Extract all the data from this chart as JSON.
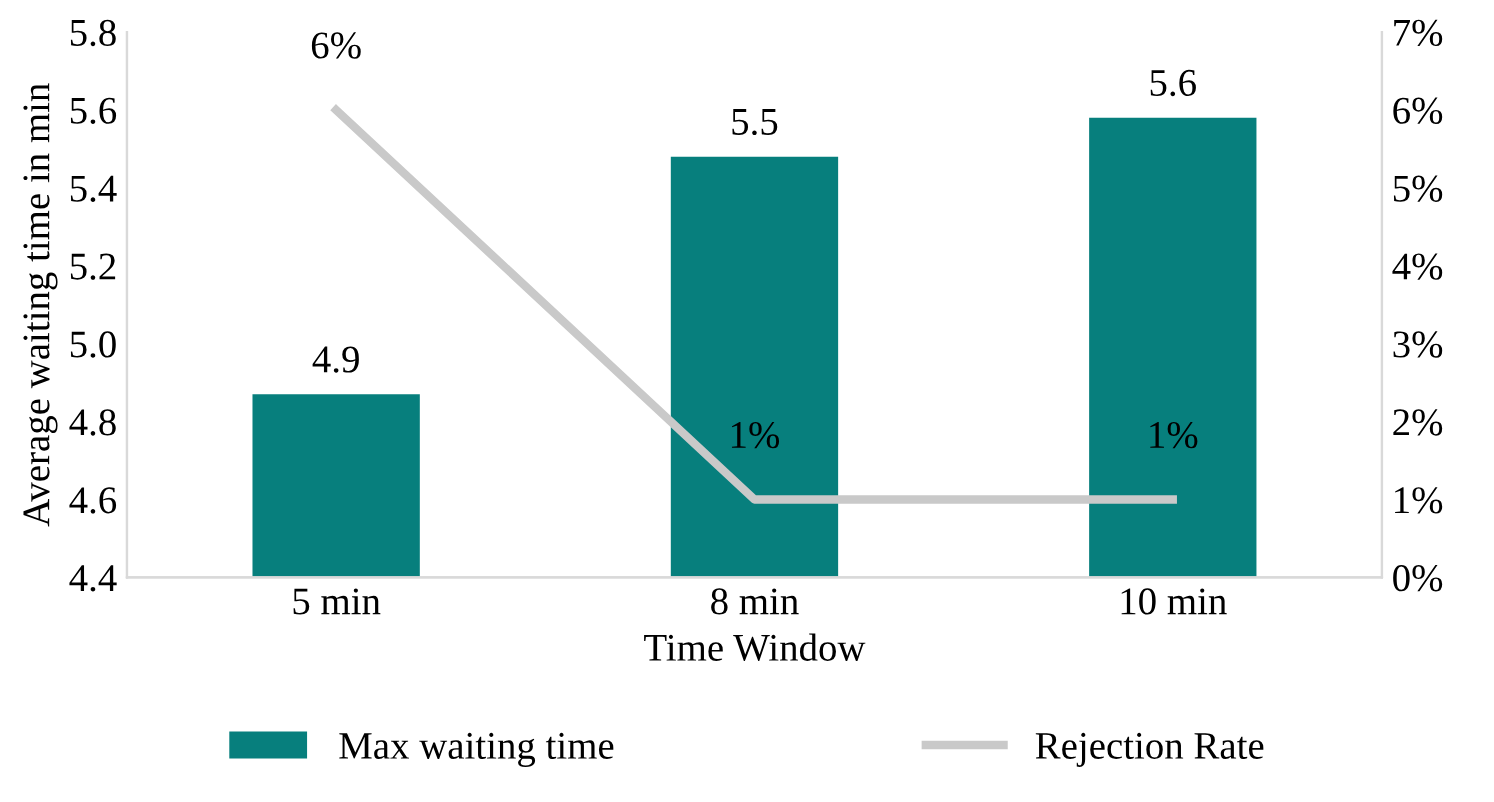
{
  "chart_data": {
    "type": "bar",
    "xlabel": "Time Window",
    "ylabel": "Average waiting time in min",
    "categories": [
      "5 min",
      "8 min",
      "10 min"
    ],
    "series": [
      {
        "name": "Max waiting time",
        "color": "#077f7d",
        "values": [
          4.87,
          5.48,
          5.58
        ],
        "value_labels": [
          "4.9",
          "5.5",
          "5.6"
        ]
      },
      {
        "name": "Rejection Rate",
        "type": "line",
        "axis": "y2",
        "color": "#c9c9c9",
        "values": [
          6,
          1,
          1
        ],
        "value_labels": [
          "6%",
          "1%",
          "1%"
        ]
      }
    ],
    "ylim": [
      4.4,
      5.8
    ],
    "yticks": [
      4.4,
      4.6,
      4.8,
      {
        "value": 5,
        "label": "5.0"
      },
      5.2,
      5.4,
      5.6,
      5.8
    ],
    "y2lim": [
      0,
      7
    ],
    "y2ticks": [
      {
        "value": 0,
        "label": "0%"
      },
      {
        "value": 1,
        "label": "1%"
      },
      {
        "value": 2,
        "label": "2%"
      },
      {
        "value": 3,
        "label": "3%"
      },
      {
        "value": 4,
        "label": "4%"
      },
      {
        "value": 5,
        "label": "5%"
      },
      {
        "value": 6,
        "label": "6%"
      },
      {
        "value": 7,
        "label": "7%"
      }
    ],
    "legend": "bottom",
    "grid": false,
    "marker": "none"
  }
}
